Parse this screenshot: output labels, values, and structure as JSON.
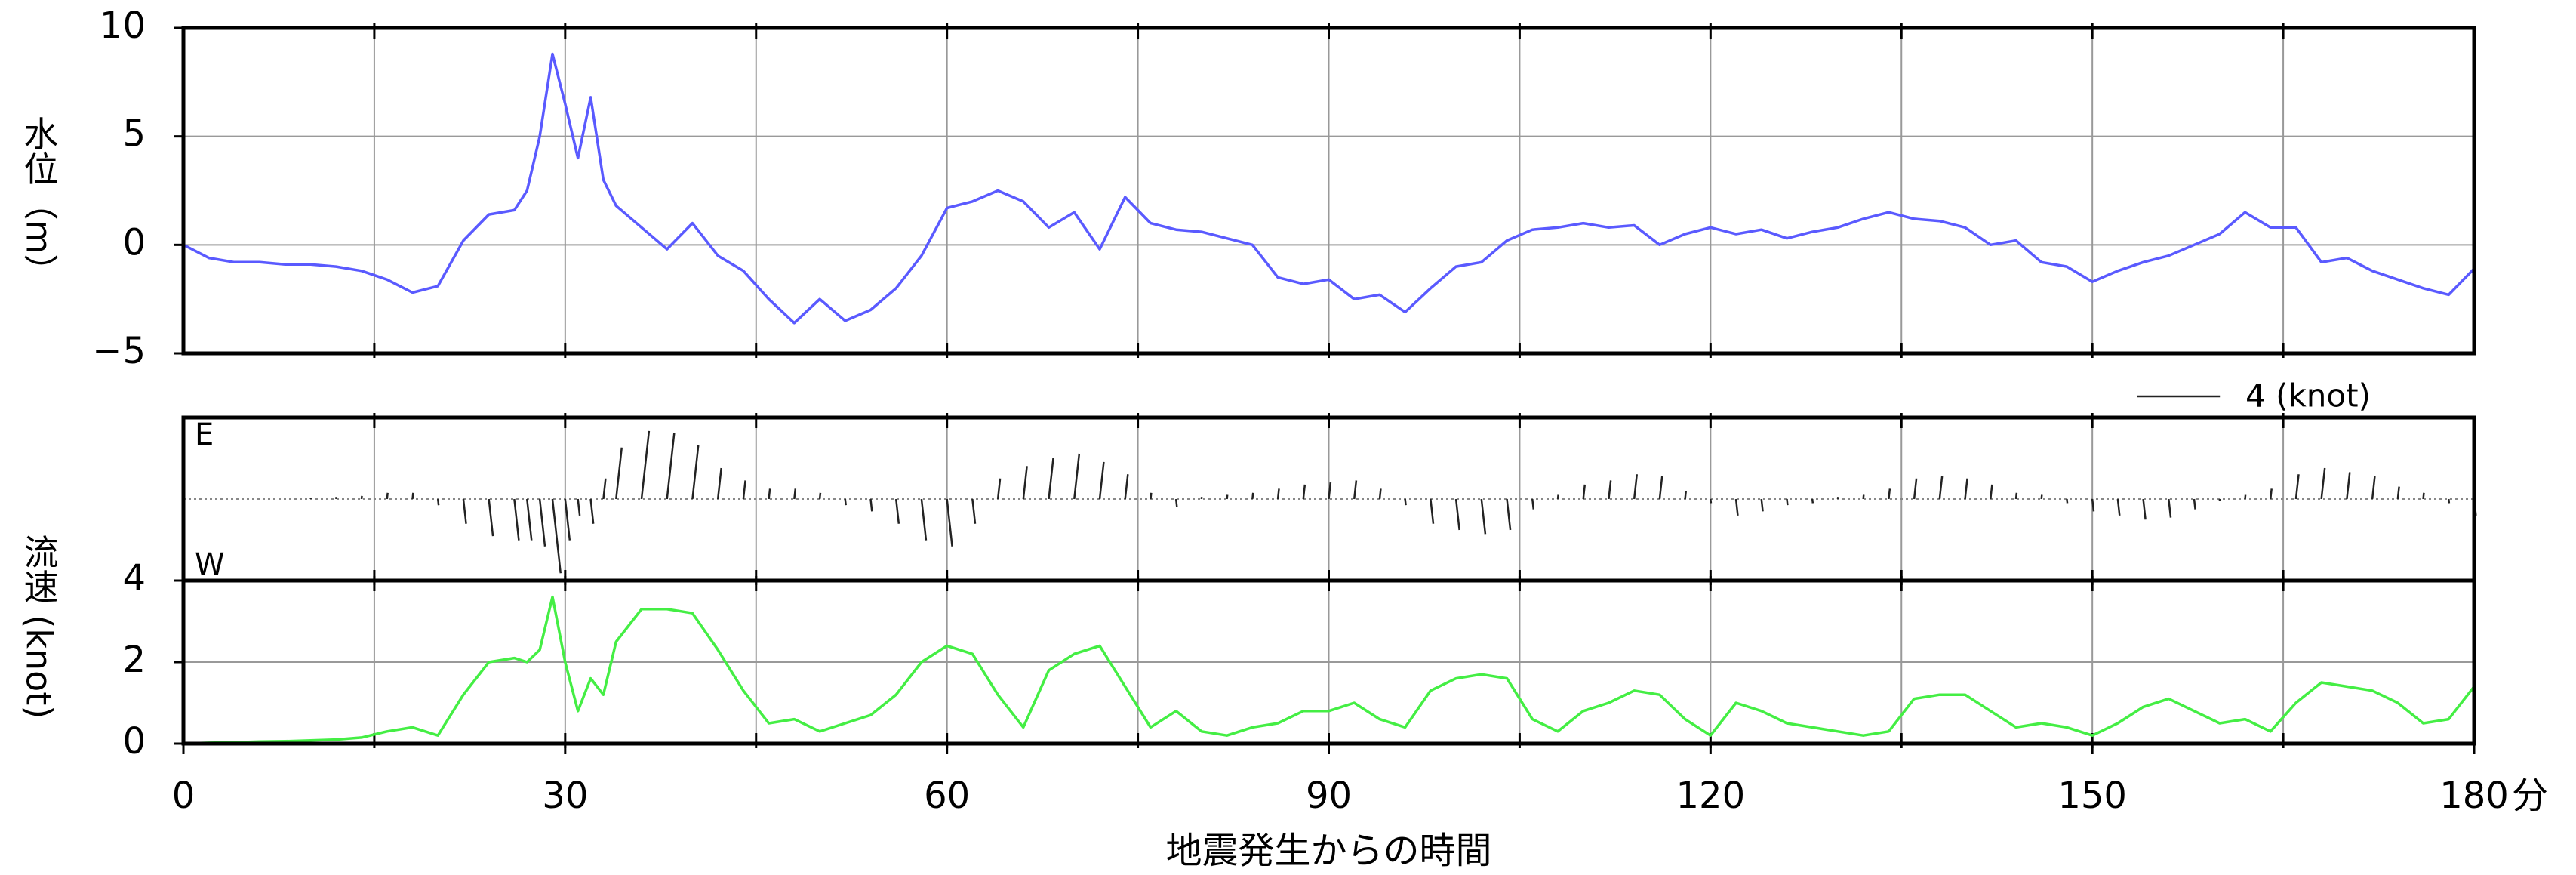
{
  "chart_data": [
    {
      "type": "line",
      "ylabel": "水位（m）",
      "x": [
        0,
        2,
        4,
        6,
        8,
        10,
        12,
        14,
        16,
        18,
        20,
        22,
        24,
        26,
        27,
        28,
        29,
        30,
        31,
        32,
        33,
        34,
        36,
        38,
        40,
        42,
        44,
        46,
        48,
        50,
        52,
        54,
        56,
        58,
        60,
        62,
        64,
        66,
        68,
        70,
        72,
        74,
        76,
        78,
        80,
        82,
        84,
        86,
        88,
        90,
        92,
        94,
        96,
        98,
        100,
        102,
        104,
        106,
        108,
        110,
        112,
        114,
        116,
        118,
        120,
        122,
        124,
        126,
        128,
        130,
        132,
        134,
        136,
        138,
        140,
        142,
        144,
        146,
        148,
        150,
        152,
        154,
        156,
        158,
        160,
        162,
        164,
        166,
        168,
        170,
        172,
        174,
        176,
        178,
        180
      ],
      "series": [
        {
          "color": "#5a5aff",
          "values": [
            0.0,
            -0.6,
            -0.8,
            -0.8,
            -0.9,
            -0.9,
            -1.0,
            -1.2,
            -1.6,
            -2.2,
            -1.9,
            0.2,
            1.4,
            1.6,
            2.5,
            5.0,
            8.8,
            6.5,
            4.0,
            6.8,
            3.0,
            1.8,
            0.8,
            -0.2,
            1.0,
            -0.5,
            -1.2,
            -2.5,
            -3.6,
            -2.5,
            -3.5,
            -3.0,
            -2.0,
            -0.5,
            1.7,
            2.0,
            2.5,
            2.0,
            0.8,
            1.5,
            -0.2,
            2.2,
            1.0,
            0.7,
            0.6,
            0.3,
            0.0,
            -1.5,
            -1.8,
            -1.6,
            -2.5,
            -2.3,
            -3.1,
            -2.0,
            -1.0,
            -0.8,
            0.2,
            0.7,
            0.8,
            1.0,
            0.8,
            0.9,
            0.0,
            0.5,
            0.8,
            0.5,
            0.7,
            0.3,
            0.6,
            0.8,
            1.2,
            1.5,
            1.2,
            1.1,
            0.8,
            0.0,
            0.2,
            -0.8,
            -1.0,
            -1.7,
            -1.2,
            -0.8,
            -0.5,
            0.0,
            0.5,
            1.5,
            0.8,
            0.8,
            -0.8,
            -0.6,
            -1.2,
            -1.6,
            -2.0,
            -2.3,
            -1.1
          ]
        }
      ],
      "xlim": [
        0,
        180
      ],
      "xgrid": [
        15,
        30,
        45,
        60,
        75,
        90,
        105,
        120,
        135,
        150,
        165
      ],
      "ylim": [
        -5,
        10
      ],
      "yticks": [
        {
          "value": -5,
          "label": "−5"
        },
        0,
        5,
        10
      ],
      "grid": true
    },
    {
      "type": "stick",
      "top_label": "E",
      "bottom_label": "W",
      "scale_label": "4 (knot)",
      "x": [
        0,
        2,
        4,
        6,
        8,
        10,
        12,
        14,
        16,
        18,
        20,
        22,
        24,
        26,
        27,
        28,
        29,
        30,
        31,
        32,
        33,
        34,
        36,
        38,
        40,
        42,
        44,
        46,
        48,
        50,
        52,
        54,
        56,
        58,
        60,
        62,
        64,
        66,
        68,
        70,
        72,
        74,
        76,
        78,
        80,
        82,
        84,
        86,
        88,
        90,
        92,
        94,
        96,
        98,
        100,
        102,
        104,
        106,
        108,
        110,
        112,
        114,
        116,
        118,
        120,
        122,
        124,
        126,
        128,
        130,
        132,
        134,
        136,
        138,
        140,
        142,
        144,
        146,
        148,
        150,
        152,
        154,
        156,
        158,
        160,
        162,
        164,
        166,
        168,
        170,
        172,
        174,
        176,
        178,
        180
      ],
      "series": [
        {
          "color": "#222222",
          "values": [
            0,
            0,
            0,
            0,
            0,
            0.05,
            0.1,
            0.15,
            0.3,
            0.3,
            -0.3,
            -1.2,
            -1.8,
            -2.0,
            -2.0,
            -2.3,
            -3.6,
            -2.0,
            -0.8,
            -1.2,
            1.0,
            2.5,
            3.3,
            3.2,
            2.6,
            1.5,
            0.9,
            0.5,
            0.5,
            0.3,
            -0.3,
            -0.6,
            -1.2,
            -2.0,
            -2.3,
            -1.2,
            1.0,
            1.6,
            2.0,
            2.2,
            1.8,
            1.2,
            0.3,
            -0.4,
            0.1,
            0.2,
            0.3,
            0.5,
            0.7,
            0.8,
            0.9,
            0.5,
            -0.3,
            -1.2,
            -1.5,
            -1.7,
            -1.5,
            -0.5,
            0.2,
            0.7,
            0.9,
            1.2,
            1.1,
            0.4,
            -0.2,
            -0.8,
            -0.6,
            -0.3,
            -0.2,
            0.1,
            0.2,
            0.5,
            1.0,
            1.1,
            1.0,
            0.7,
            0.3,
            0.2,
            -0.2,
            -0.6,
            -0.8,
            -1.0,
            -0.9,
            -0.5,
            -0.1,
            0.2,
            0.5,
            1.2,
            1.5,
            1.3,
            1.1,
            0.6,
            0.3,
            -0.2,
            -0.8
          ]
        }
      ],
      "xlim": [
        0,
        180
      ],
      "xgrid": [
        15,
        30,
        45,
        60,
        75,
        90,
        105,
        120,
        135,
        150,
        165
      ]
    },
    {
      "type": "line",
      "ylabel": "流速 (knot)",
      "xlabel": "地震発生からの時間",
      "xunit": "分",
      "x": [
        0,
        2,
        4,
        6,
        8,
        10,
        12,
        14,
        16,
        18,
        20,
        22,
        24,
        26,
        27,
        28,
        29,
        30,
        31,
        32,
        33,
        34,
        36,
        38,
        40,
        42,
        44,
        46,
        48,
        50,
        52,
        54,
        56,
        58,
        60,
        62,
        64,
        66,
        68,
        70,
        72,
        74,
        76,
        78,
        80,
        82,
        84,
        86,
        88,
        90,
        92,
        94,
        96,
        98,
        100,
        102,
        104,
        106,
        108,
        110,
        112,
        114,
        116,
        118,
        120,
        122,
        124,
        126,
        128,
        130,
        132,
        134,
        136,
        138,
        140,
        142,
        144,
        146,
        148,
        150,
        152,
        154,
        156,
        158,
        160,
        162,
        164,
        166,
        168,
        170,
        172,
        174,
        176,
        178,
        180
      ],
      "series": [
        {
          "color": "#44ee44",
          "values": [
            0.0,
            0.02,
            0.03,
            0.05,
            0.06,
            0.08,
            0.1,
            0.15,
            0.3,
            0.4,
            0.2,
            1.2,
            2.0,
            2.1,
            2.0,
            2.3,
            3.6,
            2.0,
            0.8,
            1.6,
            1.2,
            2.5,
            3.3,
            3.3,
            3.2,
            2.3,
            1.3,
            0.5,
            0.6,
            0.3,
            0.5,
            0.7,
            1.2,
            2.0,
            2.4,
            2.2,
            1.2,
            0.4,
            1.8,
            2.2,
            2.4,
            1.4,
            0.4,
            0.8,
            0.3,
            0.2,
            0.4,
            0.5,
            0.8,
            0.8,
            1.0,
            0.6,
            0.4,
            1.3,
            1.6,
            1.7,
            1.6,
            0.6,
            0.3,
            0.8,
            1.0,
            1.3,
            1.2,
            0.6,
            0.2,
            1.0,
            0.8,
            0.5,
            0.4,
            0.3,
            0.2,
            0.3,
            1.1,
            1.2,
            1.2,
            0.8,
            0.4,
            0.5,
            0.4,
            0.2,
            0.5,
            0.9,
            1.1,
            0.8,
            0.5,
            0.6,
            0.3,
            1.0,
            1.5,
            1.4,
            1.3,
            1.0,
            0.5,
            0.6,
            1.4
          ]
        }
      ],
      "xlim": [
        0,
        180
      ],
      "xticks": [
        0,
        30,
        60,
        90,
        120,
        150,
        180
      ],
      "xgrid": [
        15,
        30,
        45,
        60,
        75,
        90,
        105,
        120,
        135,
        150,
        165
      ],
      "ylim": [
        0,
        4
      ],
      "yticks": [
        0,
        2,
        4
      ],
      "grid": true
    }
  ]
}
